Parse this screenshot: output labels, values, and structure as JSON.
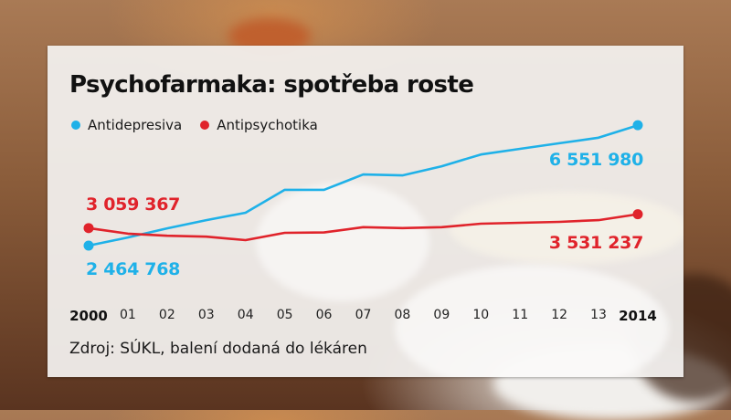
{
  "title": "Psychofarmaka: spotřeba roste",
  "source": "Zdroj: SÚKL, balení dodaná do lékáren",
  "colors": {
    "antidepresiva": "#1fb1e8",
    "antipsychotika": "#e0232b"
  },
  "legend": [
    {
      "label": "Antidepresiva",
      "color": "#1fb1e8"
    },
    {
      "label": "Antipsychotika",
      "color": "#e0232b"
    }
  ],
  "labels": {
    "antidepresiva_start": "2 464 768",
    "antidepresiva_end": "6 551 980",
    "antipsychotika_start": "3 059 367",
    "antipsychotika_end": "3 531 237"
  },
  "xticks": [
    "2000",
    "01",
    "02",
    "03",
    "04",
    "05",
    "06",
    "07",
    "08",
    "09",
    "10",
    "11",
    "12",
    "13",
    "2014"
  ],
  "chart_data": {
    "type": "line",
    "title": "Psychofarmaka: spotřeba roste",
    "xlabel": "",
    "ylabel": "",
    "x": [
      "2000",
      "01",
      "02",
      "03",
      "04",
      "05",
      "06",
      "07",
      "08",
      "09",
      "10",
      "11",
      "12",
      "13",
      "2014"
    ],
    "series": [
      {
        "name": "Antidepresiva",
        "color": "#1fb1e8",
        "values": [
          2464768,
          2740000,
          3050000,
          3330000,
          3580000,
          4360000,
          4360000,
          4880000,
          4850000,
          5160000,
          5560000,
          5750000,
          5940000,
          6130000,
          6551980
        ]
      },
      {
        "name": "Antipsychotika",
        "color": "#e0232b",
        "values": [
          3059367,
          2870000,
          2800000,
          2770000,
          2650000,
          2900000,
          2910000,
          3090000,
          3060000,
          3090000,
          3210000,
          3240000,
          3270000,
          3330000,
          3531237
        ]
      }
    ],
    "annotations": [
      {
        "series": "Antidepresiva",
        "x": "2000",
        "text": "2 464 768"
      },
      {
        "series": "Antidepresiva",
        "x": "2014",
        "text": "6 551 980"
      },
      {
        "series": "Antipsychotika",
        "x": "2000",
        "text": "3 059 367"
      },
      {
        "series": "Antipsychotika",
        "x": "2014",
        "text": "3 531 237"
      }
    ],
    "ylim": [
      2000000,
      7000000
    ],
    "grid": false,
    "legend_position": "top-left",
    "source": "Zdroj: SÚKL, balení dodaná do lékáren"
  }
}
